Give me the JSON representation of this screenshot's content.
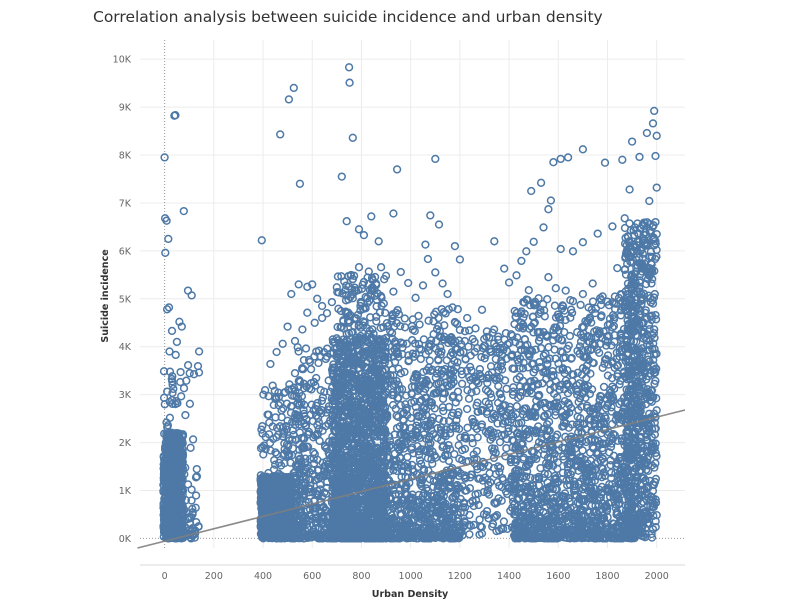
{
  "title": "Correlation analysis between suicide incidence and urban density",
  "colors": {
    "marker": "#4e79a7",
    "trend": "#7f7f7f",
    "grid": "#ececec",
    "zero_line": "#999999"
  },
  "chart_data": {
    "type": "scatter",
    "title": "Correlation analysis between suicide incidence and urban density",
    "xlabel": "Urban Density",
    "ylabel": "Suicide incidence",
    "xlim": [
      -100,
      2115
    ],
    "ylim": [
      -200,
      10400
    ],
    "x_ticks": [
      0,
      200,
      400,
      600,
      800,
      1000,
      1200,
      1400,
      1600,
      1800,
      2000
    ],
    "x_tick_labels": [
      "0",
      "200",
      "400",
      "600",
      "800",
      "1000",
      "1200",
      "1400",
      "1600",
      "1800",
      "2000"
    ],
    "y_ticks": [
      0,
      1000,
      2000,
      3000,
      4000,
      5000,
      6000,
      7000,
      8000,
      9000,
      10000
    ],
    "y_tick_labels": [
      "0K",
      "1K",
      "2K",
      "3K",
      "4K",
      "5K",
      "6K",
      "7K",
      "8K",
      "9K",
      "10K"
    ],
    "grid": true,
    "marker": "hollow-circle",
    "trend_line": {
      "type": "linear",
      "x": [
        -110,
        2115
      ],
      "y": [
        -200,
        2680
      ]
    },
    "points": [
      [
        0,
        7950
      ],
      [
        2,
        6680
      ],
      [
        8,
        6630
      ],
      [
        3,
        5960
      ],
      [
        15,
        6250
      ],
      [
        10,
        4780
      ],
      [
        18,
        4820
      ],
      [
        40,
        8820
      ],
      [
        44,
        8830
      ],
      [
        78,
        6830
      ],
      [
        60,
        4520
      ],
      [
        70,
        4420
      ],
      [
        95,
        5170
      ],
      [
        110,
        5070
      ],
      [
        140,
        3900
      ],
      [
        30,
        4330
      ],
      [
        50,
        4100
      ],
      [
        45,
        3830
      ],
      [
        20,
        3900
      ],
      [
        65,
        3470
      ],
      [
        88,
        3290
      ],
      [
        395,
        6220
      ],
      [
        470,
        8430
      ],
      [
        505,
        9160
      ],
      [
        525,
        9400
      ],
      [
        550,
        7400
      ],
      [
        515,
        5100
      ],
      [
        545,
        5300
      ],
      [
        580,
        5250
      ],
      [
        600,
        5300
      ],
      [
        620,
        5000
      ],
      [
        640,
        4600
      ],
      [
        720,
        7550
      ],
      [
        740,
        6620
      ],
      [
        750,
        9830
      ],
      [
        752,
        9510
      ],
      [
        765,
        8360
      ],
      [
        790,
        6450
      ],
      [
        810,
        6330
      ],
      [
        840,
        6720
      ],
      [
        870,
        6200
      ],
      [
        930,
        6780
      ],
      [
        945,
        7700
      ],
      [
        1100,
        7920
      ],
      [
        1080,
        6740
      ],
      [
        1115,
        6550
      ],
      [
        1060,
        6130
      ],
      [
        1180,
        6100
      ],
      [
        1200,
        5820
      ],
      [
        1340,
        6200
      ],
      [
        1380,
        5630
      ],
      [
        1400,
        5340
      ],
      [
        1450,
        5790
      ],
      [
        1490,
        7250
      ],
      [
        1530,
        7420
      ],
      [
        1560,
        6870
      ],
      [
        1570,
        7050
      ],
      [
        1580,
        7850
      ],
      [
        1610,
        7920
      ],
      [
        1640,
        7950
      ],
      [
        1700,
        8120
      ],
      [
        1790,
        7840
      ],
      [
        1860,
        7900
      ],
      [
        1900,
        8280
      ],
      [
        1930,
        7960
      ],
      [
        1960,
        8460
      ],
      [
        1990,
        8920
      ],
      [
        1985,
        8660
      ],
      [
        2000,
        8400
      ],
      [
        1995,
        7980
      ],
      [
        2000,
        7320
      ],
      [
        1970,
        7040
      ],
      [
        1890,
        7280
      ],
      [
        1870,
        6680
      ],
      [
        1820,
        6510
      ],
      [
        1760,
        6360
      ],
      [
        1700,
        6180
      ],
      [
        1660,
        5990
      ],
      [
        1610,
        6040
      ],
      [
        1540,
        6490
      ],
      [
        1500,
        6190
      ],
      [
        1470,
        5990
      ],
      [
        1430,
        5490
      ],
      [
        1480,
        5180
      ],
      [
        1520,
        5010
      ],
      [
        1560,
        5450
      ],
      [
        1590,
        5220
      ],
      [
        1630,
        5170
      ],
      [
        1660,
        4950
      ],
      [
        1700,
        5100
      ],
      [
        1740,
        5320
      ],
      [
        1780,
        5050
      ],
      [
        1820,
        4930
      ],
      [
        1860,
        4830
      ],
      [
        1900,
        5180
      ],
      [
        1940,
        5570
      ],
      [
        1980,
        5870
      ],
      [
        2000,
        6350
      ],
      [
        1995,
        6600
      ],
      [
        1985,
        6240
      ],
      [
        1960,
        6110
      ],
      [
        1920,
        6000
      ],
      [
        1880,
        5730
      ],
      [
        1840,
        5640
      ],
      [
        1290,
        4770
      ],
      [
        1310,
        4320
      ],
      [
        1260,
        4100
      ],
      [
        1230,
        4600
      ],
      [
        1200,
        4350
      ],
      [
        1170,
        4820
      ],
      [
        1150,
        5100
      ],
      [
        1130,
        5320
      ],
      [
        1100,
        5550
      ],
      [
        1070,
        5830
      ],
      [
        1050,
        5280
      ],
      [
        1020,
        5020
      ],
      [
        990,
        5330
      ],
      [
        960,
        5560
      ],
      [
        930,
        5150
      ],
      [
        900,
        5480
      ],
      [
        880,
        5660
      ],
      [
        860,
        5290
      ],
      [
        830,
        5570
      ],
      [
        810,
        5350
      ],
      [
        790,
        5660
      ],
      [
        770,
        5480
      ],
      [
        760,
        5200
      ],
      [
        730,
        5360
      ],
      [
        700,
        5240
      ],
      [
        680,
        4930
      ],
      [
        660,
        4700
      ],
      [
        640,
        4850
      ],
      [
        610,
        4500
      ],
      [
        580,
        4710
      ],
      [
        560,
        4360
      ],
      [
        530,
        4120
      ],
      [
        500,
        4420
      ],
      [
        480,
        4060
      ],
      [
        455,
        3890
      ],
      [
        430,
        3640
      ]
    ],
    "clusters": [
      {
        "x_range": [
          -5,
          75
        ],
        "y_range": [
          0,
          2200
        ],
        "count": 780,
        "weight": "uniform"
      },
      {
        "x_range": [
          -5,
          140
        ],
        "y_range": [
          0,
          3700
        ],
        "count": 140,
        "weight": "low"
      },
      {
        "x_range": [
          390,
          520
        ],
        "y_range": [
          0,
          1300
        ],
        "count": 900,
        "weight": "uniform"
      },
      {
        "x_range": [
          390,
          560
        ],
        "y_range": [
          0,
          3300
        ],
        "count": 260,
        "weight": "low"
      },
      {
        "x_range": [
          520,
          700
        ],
        "y_range": [
          0,
          4000
        ],
        "count": 380,
        "weight": "low"
      },
      {
        "x_range": [
          680,
          900
        ],
        "y_range": [
          0,
          4200
        ],
        "count": 1700,
        "weight": "low"
      },
      {
        "x_range": [
          700,
          900
        ],
        "y_range": [
          2200,
          5500
        ],
        "count": 260,
        "weight": "uniform"
      },
      {
        "x_range": [
          900,
          1200
        ],
        "y_range": [
          0,
          4800
        ],
        "count": 900,
        "weight": "low"
      },
      {
        "x_range": [
          1200,
          1420
        ],
        "y_range": [
          0,
          4400
        ],
        "count": 300,
        "weight": "uniform"
      },
      {
        "x_range": [
          1420,
          1700
        ],
        "y_range": [
          0,
          5000
        ],
        "count": 900,
        "weight": "low"
      },
      {
        "x_range": [
          1700,
          1920
        ],
        "y_range": [
          0,
          5100
        ],
        "count": 700,
        "weight": "low"
      },
      {
        "x_range": [
          1870,
          2000
        ],
        "y_range": [
          0,
          6600
        ],
        "count": 650,
        "weight": "uniform"
      }
    ]
  }
}
